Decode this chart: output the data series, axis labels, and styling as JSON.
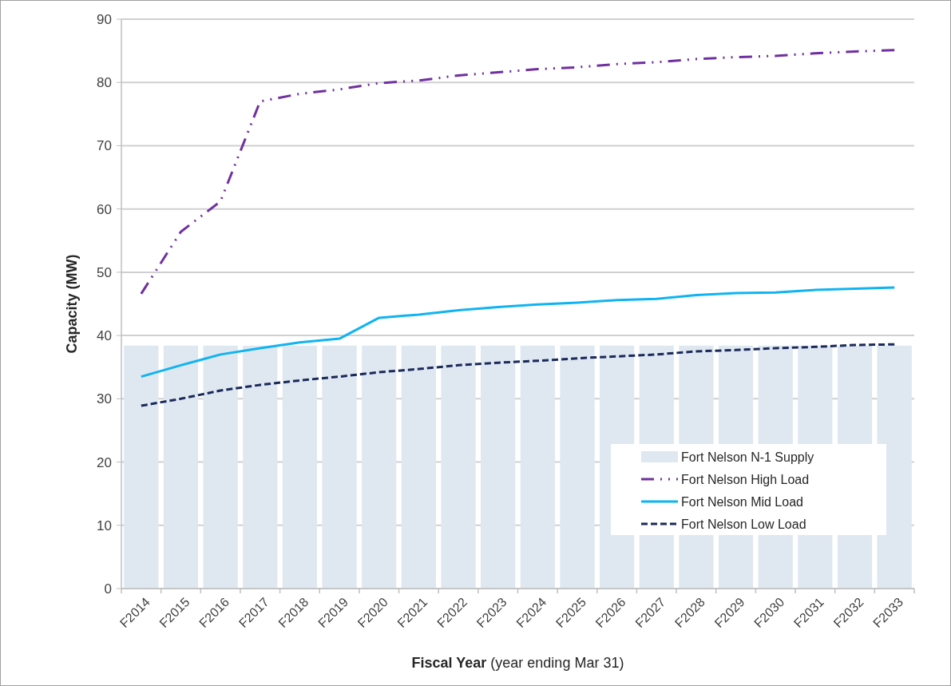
{
  "chart_data": {
    "type": "line",
    "xlabel": "Fiscal Year (year ending Mar 31)",
    "ylabel": "Capacity (MW)",
    "categories": [
      "F2014",
      "F2015",
      "F2016",
      "F2017",
      "F2018",
      "F2019",
      "F2020",
      "F2021",
      "F2022",
      "F2023",
      "F2024",
      "F2025",
      "F2026",
      "F2027",
      "F2028",
      "F2029",
      "F2030",
      "F2031",
      "F2032",
      "F2033"
    ],
    "series": [
      {
        "name": "Fort Nelson N-1 Supply",
        "type": "bar",
        "color": "#dfe7f1",
        "values": [
          38.4,
          38.4,
          38.4,
          38.4,
          38.4,
          38.4,
          38.4,
          38.4,
          38.4,
          38.4,
          38.4,
          38.4,
          38.4,
          38.4,
          38.4,
          38.4,
          38.4,
          38.4,
          38.4,
          38.4
        ]
      },
      {
        "name": "Fort Nelson High Load",
        "color": "#7030a0",
        "line_style": "dashdot",
        "values": [
          46.6,
          56.4,
          61.2,
          77.0,
          78.2,
          78.9,
          79.9,
          80.3,
          81.1,
          81.6,
          82.1,
          82.4,
          82.9,
          83.2,
          83.7,
          84.0,
          84.2,
          84.6,
          84.9,
          85.1
        ]
      },
      {
        "name": "Fort Nelson Mid Load",
        "color": "#10b4f0",
        "line_style": "solid",
        "values": [
          33.5,
          35.3,
          37.0,
          38.0,
          38.9,
          39.5,
          42.8,
          43.3,
          44.0,
          44.5,
          44.9,
          45.2,
          45.6,
          45.8,
          46.4,
          46.7,
          46.8,
          47.2,
          47.4,
          47.6
        ]
      },
      {
        "name": "Fort Nelson Low Load",
        "color": "#1a2a5a",
        "line_style": "dashed",
        "values": [
          28.9,
          30.0,
          31.3,
          32.2,
          32.9,
          33.5,
          34.2,
          34.7,
          35.3,
          35.7,
          36.0,
          36.4,
          36.7,
          37.0,
          37.5,
          37.7,
          38.0,
          38.2,
          38.5,
          38.6
        ]
      }
    ],
    "ylim": [
      0,
      90
    ],
    "yticks": [
      0,
      10,
      20,
      30,
      40,
      50,
      60,
      70,
      80,
      90
    ],
    "grid": "y",
    "legend": "bottom right"
  }
}
